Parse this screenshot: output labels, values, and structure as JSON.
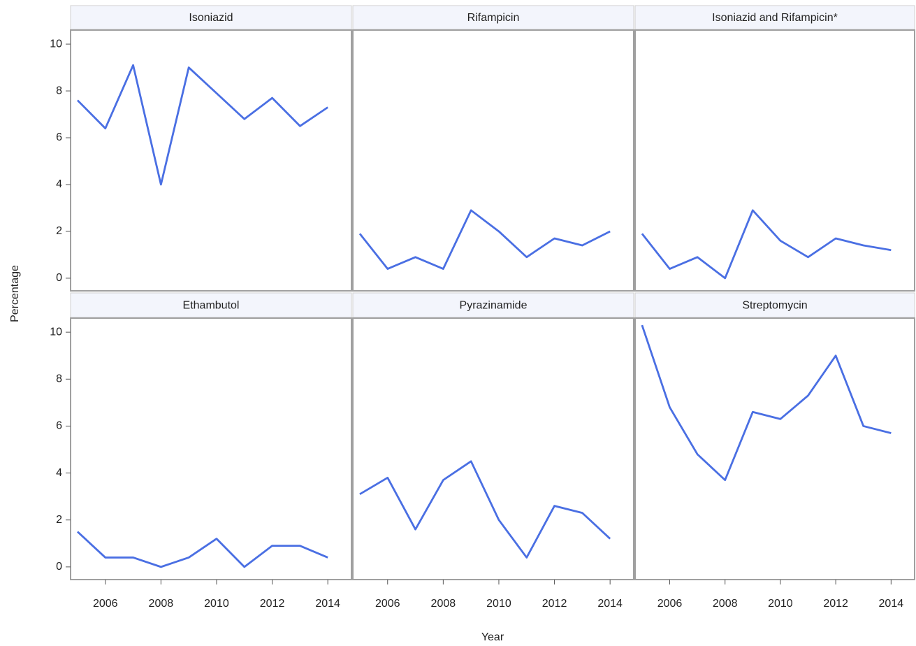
{
  "chart_data": {
    "type": "line",
    "xlabel": "Year",
    "ylabel": "Percentage",
    "x": [
      2005,
      2006,
      2007,
      2008,
      2009,
      2010,
      2011,
      2012,
      2013,
      2014
    ],
    "xlim": [
      2004.75,
      2014.85
    ],
    "xticks": [
      2006,
      2008,
      2010,
      2012,
      2014
    ],
    "ylim": [
      -0.54,
      10.6
    ],
    "yticks": [
      0,
      2,
      4,
      6,
      8,
      10
    ],
    "grid": false,
    "series": [
      {
        "name": "Isoniazid",
        "color": "#4a6fe3",
        "values": [
          7.6,
          6.4,
          9.1,
          4.0,
          9.0,
          7.9,
          6.8,
          7.7,
          6.5,
          7.3
        ]
      },
      {
        "name": "Rifampicin",
        "color": "#4a6fe3",
        "values": [
          1.9,
          0.4,
          0.9,
          0.4,
          2.9,
          2.0,
          0.9,
          1.7,
          1.4,
          2.0
        ]
      },
      {
        "name": "Isoniazid and Rifampicin*",
        "color": "#4a6fe3",
        "values": [
          1.9,
          0.4,
          0.9,
          0.0,
          2.9,
          1.6,
          0.9,
          1.7,
          1.4,
          1.2
        ]
      },
      {
        "name": "Ethambutol",
        "color": "#4a6fe3",
        "values": [
          1.5,
          0.4,
          0.4,
          0.0,
          0.4,
          1.2,
          0.0,
          0.9,
          0.9,
          0.4
        ]
      },
      {
        "name": "Pyrazinamide",
        "color": "#4a6fe3",
        "values": [
          3.1,
          3.8,
          1.6,
          3.7,
          4.5,
          2.0,
          0.4,
          2.6,
          2.3,
          1.2
        ]
      },
      {
        "name": "Streptomycin",
        "color": "#4a6fe3",
        "values": [
          10.3,
          6.8,
          4.8,
          3.7,
          6.6,
          6.3,
          7.3,
          9.0,
          6.0,
          5.7
        ]
      }
    ]
  }
}
